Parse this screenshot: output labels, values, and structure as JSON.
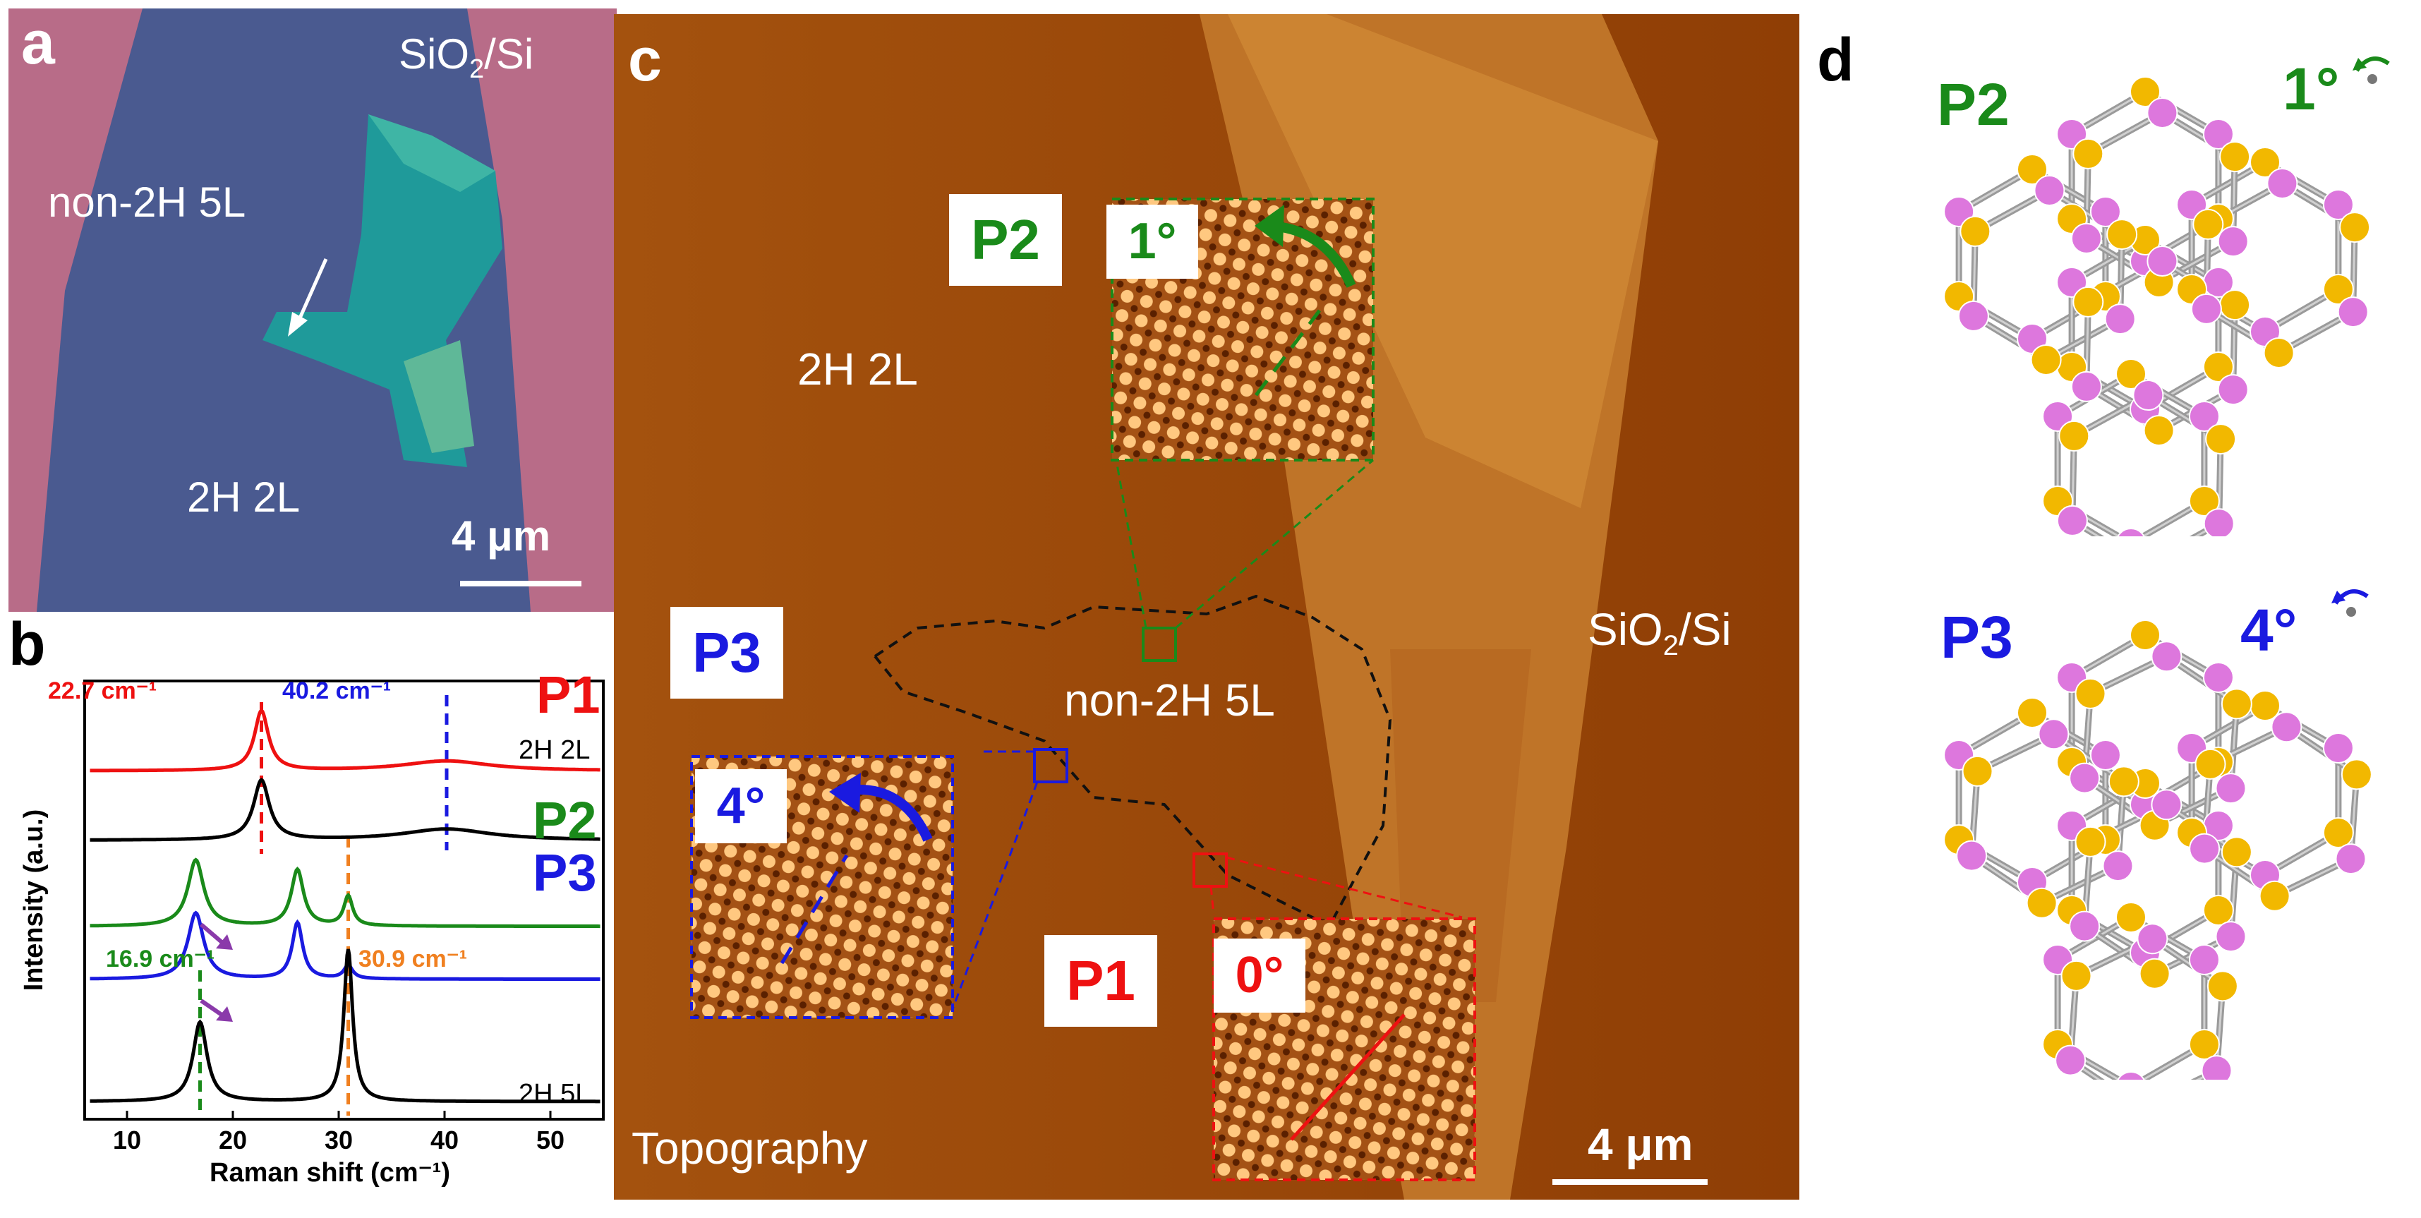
{
  "panel_a": {
    "letter": "a",
    "substrate_label": "SiO",
    "substrate_sub": "2",
    "substrate_tail": "/Si",
    "flake_label": "non-2H 5L",
    "bilayer_label": "2H 2L",
    "scale_bar": "4 μm"
  },
  "panel_b": {
    "letter": "b",
    "ann_left": "22.7 cm⁻¹",
    "ann_right": "40.2 cm⁻¹",
    "ann_green": "16.9 cm⁻¹",
    "ann_orange": "30.9 cm⁻¹"
  },
  "panel_c": {
    "letter": "c",
    "bilayer_label": "2H 2L",
    "flake_label": "non-2H 5L",
    "substrate_label": "SiO",
    "substrate_sub": "2",
    "substrate_tail": "/Si",
    "mode_label": "Topography",
    "scale_bar": "4 μm",
    "insets": [
      {
        "tag": "P2",
        "angle": "1°"
      },
      {
        "tag": "P3",
        "angle": "4°"
      },
      {
        "tag": "P1",
        "angle": "0°"
      }
    ]
  },
  "panel_d": {
    "letter": "d",
    "models": [
      {
        "tag": "P2",
        "angle": "1°"
      },
      {
        "tag": "P3",
        "angle": "4°"
      }
    ]
  },
  "colors": {
    "p1": "#ee1111",
    "p2": "#1a8a1a",
    "p3": "#1a1ae0",
    "orange": "#f08020",
    "s_atom": "#f2b800",
    "mo_atom": "#dd77dd"
  },
  "chart_data": {
    "type": "line",
    "title": "",
    "xlabel": "Raman shift  (cm⁻¹)",
    "ylabel": "Intensity (a.u.)",
    "xlim": [
      6,
      55
    ],
    "xticks": [
      10,
      20,
      30,
      40,
      50
    ],
    "series": [
      {
        "name": "P1",
        "color": "#ee1111",
        "offset": 5.0,
        "peaks": [
          {
            "x": 22.7,
            "h": 0.9,
            "w": 0.8
          },
          {
            "x": 40.2,
            "h": 0.15,
            "w": 5.0
          }
        ]
      },
      {
        "name": "2H 2L",
        "color": "#000000",
        "offset": 3.95,
        "peaks": [
          {
            "x": 22.7,
            "h": 0.9,
            "w": 0.9
          },
          {
            "x": 40.2,
            "h": 0.17,
            "w": 5.0
          }
        ]
      },
      {
        "name": "P2",
        "color": "#1a8a1a",
        "offset": 2.65,
        "peaks": [
          {
            "x": 16.5,
            "h": 1.0,
            "w": 0.9
          },
          {
            "x": 26.1,
            "h": 0.85,
            "w": 0.7
          },
          {
            "x": 30.9,
            "h": 0.45,
            "w": 0.5
          }
        ]
      },
      {
        "name": "P3",
        "color": "#1a1ae0",
        "offset": 1.85,
        "peaks": [
          {
            "x": 16.5,
            "h": 1.0,
            "w": 0.9
          },
          {
            "x": 26.1,
            "h": 0.85,
            "w": 0.6
          },
          {
            "x": 30.9,
            "h": 0.2,
            "w": 0.5
          }
        ]
      },
      {
        "name": "2H 5L",
        "color": "#000000",
        "offset": 0.0,
        "peaks": [
          {
            "x": 16.9,
            "h": 1.2,
            "w": 0.8
          },
          {
            "x": 30.9,
            "h": 2.3,
            "w": 0.5
          }
        ]
      }
    ],
    "markers": [
      {
        "x": 22.7,
        "color": "#ee1111"
      },
      {
        "x": 40.2,
        "color": "#1a1ae0"
      },
      {
        "x": 16.9,
        "color": "#1a8a1a"
      },
      {
        "x": 30.9,
        "color": "#f08020"
      }
    ]
  }
}
